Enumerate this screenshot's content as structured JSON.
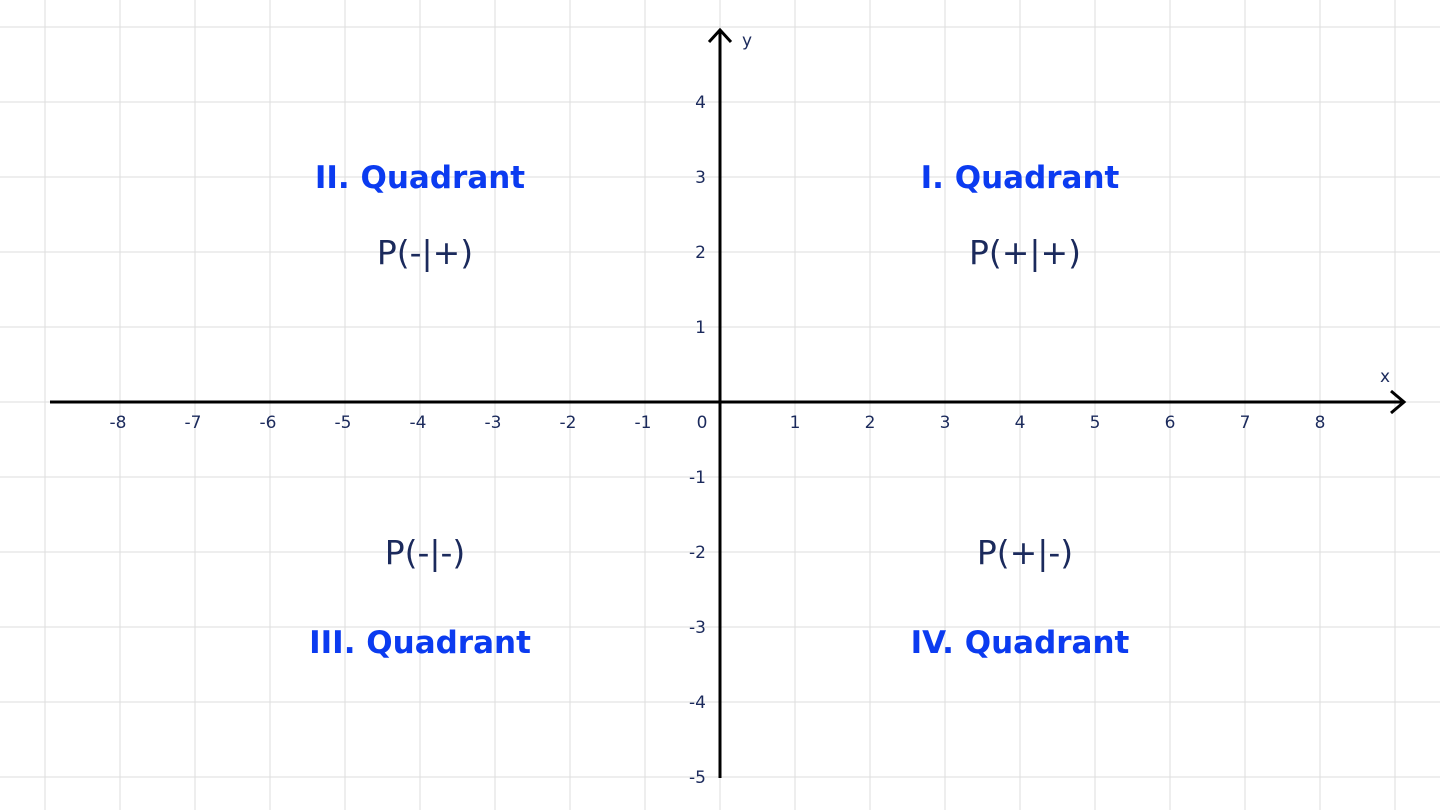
{
  "axes": {
    "x_label": "x",
    "y_label": "y",
    "origin_label": "0",
    "x_ticks": [
      -8,
      -7,
      -6,
      -5,
      -4,
      -3,
      -2,
      -1,
      1,
      2,
      3,
      4,
      5,
      6,
      7,
      8
    ],
    "y_ticks": [
      4,
      3,
      2,
      1,
      -1,
      -2,
      -3,
      -4,
      -5
    ],
    "grid": true
  },
  "quadrants": [
    {
      "title": "I. Quadrant",
      "point": "P(+|+)",
      "cx": 4,
      "title_y": 3,
      "point_y": 2
    },
    {
      "title": "II. Quadrant",
      "point": "P(-|+)",
      "cx": -4,
      "title_y": 3,
      "point_y": 2
    },
    {
      "title": "III. Quadrant",
      "point": "P(-|-)",
      "cx": -4,
      "title_y": -3.2,
      "point_y": -2
    },
    {
      "title": "IV. Quadrant",
      "point": "P(+|-)",
      "cx": 4,
      "title_y": -3.2,
      "point_y": -2
    }
  ],
  "colors": {
    "quadrant_title": "#0b3bf0",
    "text": "#1b2a5c",
    "axis": "#000000",
    "grid": "#dddddd"
  }
}
